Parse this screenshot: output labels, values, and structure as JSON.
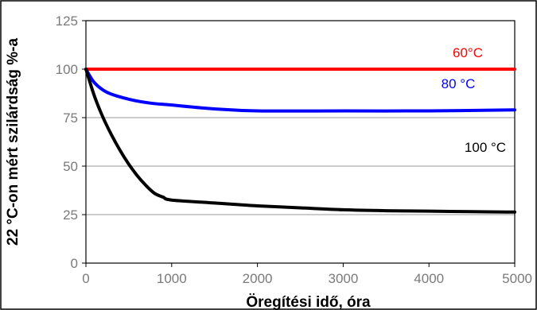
{
  "chart_data": {
    "type": "line",
    "xlabel": "Öregítési idő, óra",
    "ylabel": "22 °C-on mért szilárdság %-a",
    "xlim": [
      0,
      5000
    ],
    "ylim": [
      0,
      125
    ],
    "x_ticks": [
      0,
      1000,
      2000,
      3000,
      4000,
      5000
    ],
    "y_ticks": [
      0,
      25,
      50,
      75,
      100,
      125
    ],
    "x_tick_labels": [
      "0",
      "1000",
      "2000",
      "3000",
      "4000",
      "5000"
    ],
    "y_tick_labels": [
      "0",
      "25",
      "50",
      "75",
      "100",
      "125"
    ],
    "grid": true,
    "series": [
      {
        "name": "60°C",
        "color": "#ff0000",
        "x": [
          0,
          5000
        ],
        "y": [
          100,
          100
        ]
      },
      {
        "name": "80 °C",
        "color": "#0000ff",
        "x": [
          0,
          100,
          250,
          500,
          750,
          1000,
          1500,
          2000,
          3000,
          4000,
          5000
        ],
        "y": [
          100,
          93,
          88,
          84.5,
          82.5,
          81.5,
          79.5,
          78.5,
          78.5,
          78.5,
          79
        ]
      },
      {
        "name": "100 °C",
        "color": "#000000",
        "x": [
          0,
          100,
          200,
          300,
          400,
          500,
          600,
          700,
          800,
          900,
          1000,
          1500,
          2000,
          2500,
          3000,
          3500,
          4000,
          4500,
          5000
        ],
        "y": [
          100,
          86,
          75,
          66,
          58,
          51,
          45,
          40,
          36,
          34,
          32.5,
          31,
          29.5,
          28.5,
          27.5,
          27,
          26.8,
          26.5,
          26.3
        ]
      }
    ]
  }
}
